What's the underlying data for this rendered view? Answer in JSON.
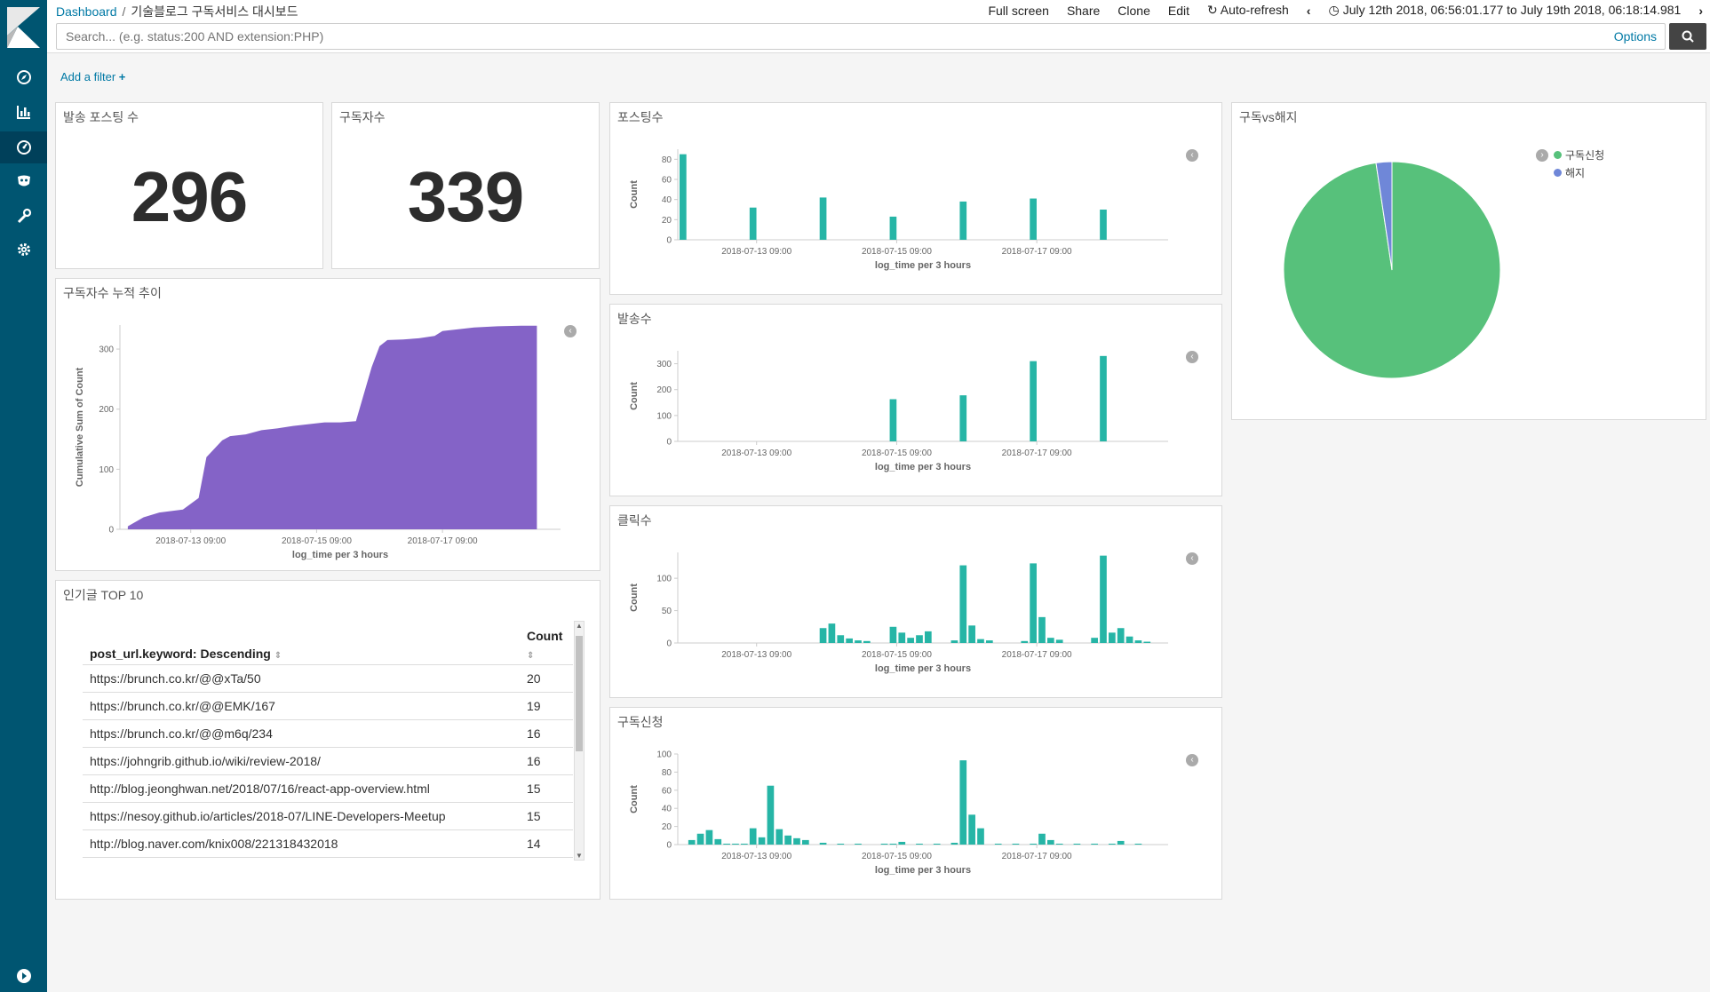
{
  "topbar": {
    "breadcrumb_root": "Dashboard",
    "breadcrumb_current": "기술블로그 구독서비스 대시보드",
    "full_screen": "Full screen",
    "share": "Share",
    "clone": "Clone",
    "edit": "Edit",
    "auto_refresh": "Auto-refresh",
    "time_range": "July 12th 2018, 06:56:01.177 to July 19th 2018, 06:18:14.981"
  },
  "search": {
    "placeholder": "Search... (e.g. status:200 AND extension:PHP)",
    "options": "Options"
  },
  "filter": {
    "add_filter": "Add a filter"
  },
  "colors": {
    "sidebar": "#005571",
    "bar": "#26b5a6",
    "area": "#8463c7",
    "pie_subscribe": "#57c17b",
    "pie_cancel": "#6f87d8",
    "link": "#0079a5"
  },
  "metrics": [
    {
      "title": "발송 포스팅 수",
      "value": "296"
    },
    {
      "title": "구독자수",
      "value": "339"
    }
  ],
  "area_panel": {
    "title": "구독자수 누적 추이",
    "ylabel": "Cumulative Sum of Count",
    "xlabel": "log_time per 3 hours",
    "xticks": [
      "2018-07-13 09:00",
      "2018-07-15 09:00",
      "2018-07-17 09:00"
    ],
    "yticks": [
      "0",
      "100",
      "200",
      "300"
    ]
  },
  "table_panel": {
    "title": "인기글 TOP 10",
    "col_url": "post_url.keyword: Descending",
    "col_count": "Count",
    "rows": [
      {
        "url": "https://brunch.co.kr/@@xTa/50",
        "count": "20"
      },
      {
        "url": "https://brunch.co.kr/@@EMK/167",
        "count": "19"
      },
      {
        "url": "https://brunch.co.kr/@@m6q/234",
        "count": "16"
      },
      {
        "url": "https://johngrib.github.io/wiki/review-2018/",
        "count": "16"
      },
      {
        "url": "http://blog.jeonghwan.net/2018/07/16/react-app-overview.html",
        "count": "15"
      },
      {
        "url": "https://nesoy.github.io/articles/2018-07/LINE-Developers-Meetup",
        "count": "15"
      },
      {
        "url": "http://blog.naver.com/knix008/221318432018",
        "count": "14"
      }
    ]
  },
  "bar_panels": [
    {
      "title": "포스팅수",
      "ylabel": "Count",
      "xlabel": "log_time per 3 hours"
    },
    {
      "title": "발송수",
      "ylabel": "Count",
      "xlabel": "log_time per 3 hours"
    },
    {
      "title": "클릭수",
      "ylabel": "Count",
      "xlabel": "log_time per 3 hours"
    },
    {
      "title": "구독신청",
      "ylabel": "Count",
      "xlabel": "log_time per 3 hours"
    }
  ],
  "pie_panel": {
    "title": "구독vs해지",
    "legend": [
      "구독신청",
      "해지"
    ]
  },
  "chart_data": [
    {
      "type": "bar",
      "title": "포스팅수",
      "xlabel": "log_time per 3 hours",
      "ylabel": "Count",
      "xticks": [
        "2018-07-13 09:00",
        "2018-07-15 09:00",
        "2018-07-17 09:00"
      ],
      "yticks": [
        0,
        20,
        40,
        60,
        80
      ],
      "ylim": [
        0,
        90
      ],
      "x": [
        "2018-07-12 06:00",
        "2018-07-13 06:00",
        "2018-07-14 06:00",
        "2018-07-15 06:00",
        "2018-07-16 06:00",
        "2018-07-17 06:00",
        "2018-07-18 06:00"
      ],
      "values": [
        85,
        32,
        42,
        23,
        38,
        41,
        30
      ]
    },
    {
      "type": "bar",
      "title": "발송수",
      "xlabel": "log_time per 3 hours",
      "ylabel": "Count",
      "xticks": [
        "2018-07-13 09:00",
        "2018-07-15 09:00",
        "2018-07-17 09:00"
      ],
      "yticks": [
        0,
        100,
        200,
        300
      ],
      "ylim": [
        0,
        350
      ],
      "x": [
        "2018-07-15 06:00",
        "2018-07-16 06:00",
        "2018-07-17 06:00",
        "2018-07-18 06:00"
      ],
      "values": [
        163,
        178,
        310,
        330
      ]
    },
    {
      "type": "bar",
      "title": "클릭수",
      "xlabel": "log_time per 3 hours",
      "ylabel": "Count",
      "xticks": [
        "2018-07-13 09:00",
        "2018-07-15 09:00",
        "2018-07-17 09:00"
      ],
      "yticks": [
        0,
        50,
        100
      ],
      "ylim": [
        0,
        140
      ],
      "x": [
        "2018-07-14 06:00",
        "2018-07-14 09:00",
        "2018-07-14 12:00",
        "2018-07-14 15:00",
        "2018-07-14 18:00",
        "2018-07-14 21:00",
        "2018-07-15 06:00",
        "2018-07-15 09:00",
        "2018-07-15 12:00",
        "2018-07-15 15:00",
        "2018-07-15 18:00",
        "2018-07-16 03:00",
        "2018-07-16 06:00",
        "2018-07-16 09:00",
        "2018-07-16 12:00",
        "2018-07-16 15:00",
        "2018-07-17 03:00",
        "2018-07-17 06:00",
        "2018-07-17 09:00",
        "2018-07-17 12:00",
        "2018-07-17 15:00",
        "2018-07-18 03:00",
        "2018-07-18 06:00",
        "2018-07-18 09:00",
        "2018-07-18 12:00",
        "2018-07-18 15:00",
        "2018-07-18 18:00",
        "2018-07-18 21:00"
      ],
      "values": [
        23,
        30,
        12,
        7,
        4,
        3,
        25,
        16,
        8,
        12,
        18,
        4,
        120,
        27,
        6,
        4,
        3,
        123,
        40,
        8,
        5,
        8,
        135,
        16,
        23,
        10,
        4,
        2
      ]
    },
    {
      "type": "bar",
      "title": "구독신청",
      "xlabel": "log_time per 3 hours",
      "ylabel": "Count",
      "xticks": [
        "2018-07-13 09:00",
        "2018-07-15 09:00",
        "2018-07-17 09:00"
      ],
      "yticks": [
        0,
        20,
        40,
        60,
        80,
        100
      ],
      "ylim": [
        0,
        100
      ],
      "x": [
        "2018-07-12 09:00",
        "2018-07-12 12:00",
        "2018-07-12 15:00",
        "2018-07-12 18:00",
        "2018-07-12 21:00",
        "2018-07-13 00:00",
        "2018-07-13 03:00",
        "2018-07-13 06:00",
        "2018-07-13 09:00",
        "2018-07-13 12:00",
        "2018-07-13 15:00",
        "2018-07-13 18:00",
        "2018-07-13 21:00",
        "2018-07-14 00:00",
        "2018-07-14 06:00",
        "2018-07-14 12:00",
        "2018-07-14 18:00",
        "2018-07-15 03:00",
        "2018-07-15 06:00",
        "2018-07-15 09:00",
        "2018-07-15 15:00",
        "2018-07-15 21:00",
        "2018-07-16 03:00",
        "2018-07-16 06:00",
        "2018-07-16 09:00",
        "2018-07-16 12:00",
        "2018-07-16 18:00",
        "2018-07-17 00:00",
        "2018-07-17 06:00",
        "2018-07-17 09:00",
        "2018-07-17 12:00",
        "2018-07-17 15:00",
        "2018-07-17 21:00",
        "2018-07-18 03:00",
        "2018-07-18 09:00",
        "2018-07-18 12:00",
        "2018-07-18 18:00"
      ],
      "values": [
        5,
        12,
        16,
        6,
        1,
        1,
        1,
        18,
        8,
        65,
        17,
        10,
        7,
        5,
        2,
        1,
        1,
        1,
        1,
        3,
        1,
        1,
        2,
        93,
        33,
        18,
        1,
        1,
        1,
        12,
        5,
        1,
        1,
        1,
        1,
        4,
        1
      ]
    },
    {
      "type": "area",
      "title": "구독자수 누적 추이",
      "xlabel": "log_time per 3 hours",
      "ylabel": "Cumulative Sum of Count",
      "xticks": [
        "2018-07-13 09:00",
        "2018-07-15 09:00",
        "2018-07-17 09:00"
      ],
      "yticks": [
        0,
        100,
        200,
        300
      ],
      "ylim": [
        0,
        340
      ],
      "x": [
        "2018-07-12 09:00",
        "2018-07-12 15:00",
        "2018-07-12 21:00",
        "2018-07-13 06:00",
        "2018-07-13 12:00",
        "2018-07-13 15:00",
        "2018-07-13 21:00",
        "2018-07-14 00:00",
        "2018-07-14 06:00",
        "2018-07-14 12:00",
        "2018-07-14 18:00",
        "2018-07-15 00:00",
        "2018-07-15 06:00",
        "2018-07-15 12:00",
        "2018-07-15 18:00",
        "2018-07-16 00:00",
        "2018-07-16 06:00",
        "2018-07-16 09:00",
        "2018-07-16 12:00",
        "2018-07-16 18:00",
        "2018-07-17 00:00",
        "2018-07-17 06:00",
        "2018-07-17 09:00",
        "2018-07-17 15:00",
        "2018-07-17 21:00",
        "2018-07-18 06:00",
        "2018-07-18 15:00",
        "2018-07-18 21:00"
      ],
      "values": [
        5,
        20,
        28,
        33,
        52,
        120,
        148,
        155,
        158,
        165,
        168,
        172,
        175,
        178,
        178,
        180,
        270,
        305,
        315,
        316,
        318,
        322,
        330,
        333,
        336,
        338,
        339,
        339
      ]
    },
    {
      "type": "pie",
      "title": "구독vs해지",
      "categories": [
        "구독신청",
        "해지"
      ],
      "values": [
        331,
        8
      ]
    }
  ]
}
